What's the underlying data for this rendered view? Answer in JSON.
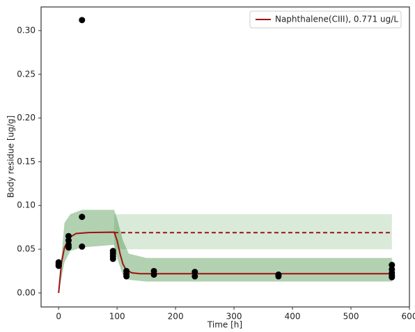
{
  "chart_data": {
    "type": "scatter",
    "xlabel": "Time [h]",
    "ylabel": "Body residue [ug/g]",
    "xlim": [
      -30,
      600
    ],
    "ylim": [
      -0.016,
      0.327
    ],
    "xticks": [
      0,
      100,
      200,
      300,
      400,
      500,
      600
    ],
    "yticks": [
      {
        "value": 0,
        "label": "0.00"
      },
      {
        "value": 0.05,
        "label": "0.05"
      },
      {
        "value": 0.1,
        "label": "0.10"
      },
      {
        "value": 0.15,
        "label": "0.15"
      },
      {
        "value": 0.2,
        "label": "0.20"
      },
      {
        "value": 0.25,
        "label": "0.25"
      },
      {
        "value": 0.3,
        "label": "0.30"
      }
    ],
    "legend_position": "upper right",
    "points": {
      "color": "#000000",
      "x": [
        0,
        0,
        0,
        17,
        17,
        17,
        17,
        40,
        40,
        40,
        93,
        93,
        93,
        93,
        116,
        116,
        116,
        163,
        163,
        233,
        233,
        376,
        376,
        570,
        570,
        570,
        570,
        570
      ],
      "y": [
        0.035,
        0.033,
        0.031,
        0.065,
        0.06,
        0.055,
        0.052,
        0.312,
        0.087,
        0.053,
        0.048,
        0.045,
        0.042,
        0.039,
        0.025,
        0.022,
        0.019,
        0.025,
        0.021,
        0.024,
        0.019,
        0.021,
        0.019,
        0.032,
        0.027,
        0.023,
        0.02,
        0.018
      ]
    },
    "bands": [
      {
        "color": "#2e8b2e",
        "opacity": 0.18,
        "x": [
          95,
          150,
          570
        ],
        "lower": [
          0.05,
          0.05,
          0.05
        ],
        "upper": [
          0.09,
          0.09,
          0.09
        ]
      },
      {
        "color": "#1f7a1f",
        "opacity": 0.35,
        "x": [
          0,
          10,
          20,
          40,
          95,
          100,
          110,
          120,
          150,
          570
        ],
        "lower": [
          0,
          0.035,
          0.048,
          0.052,
          0.055,
          0.04,
          0.02,
          0.015,
          0.013,
          0.013
        ],
        "upper": [
          0.005,
          0.08,
          0.09,
          0.095,
          0.095,
          0.085,
          0.06,
          0.045,
          0.04,
          0.04
        ]
      }
    ],
    "dashed_line": {
      "color": "#a01010",
      "x": [
        95,
        570
      ],
      "values": [
        0.069,
        0.069
      ]
    },
    "series": [
      {
        "name": "Naphthalene(CIII), 0.771 ug/L",
        "color": "#a01010",
        "x": [
          0,
          5,
          10,
          20,
          30,
          50,
          95,
          100,
          105,
          110,
          115,
          125,
          140,
          570
        ],
        "values": [
          0,
          0.035,
          0.052,
          0.064,
          0.068,
          0.069,
          0.0695,
          0.06,
          0.045,
          0.033,
          0.027,
          0.023,
          0.022,
          0.022
        ]
      }
    ]
  }
}
